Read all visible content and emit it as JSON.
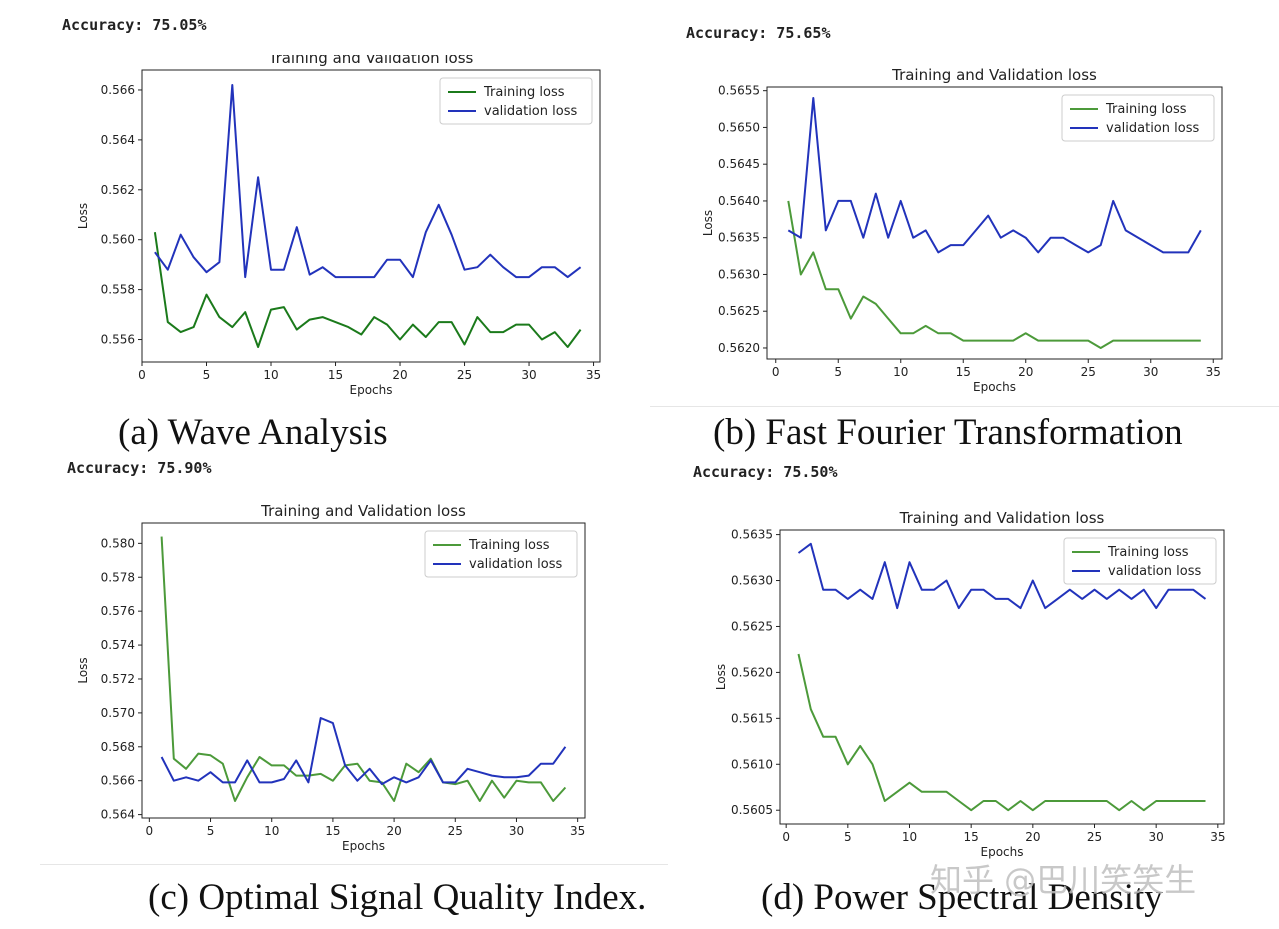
{
  "panels": [
    {
      "accuracy": "Accuracy: 75.05%",
      "caption": "(a) Wave Analysis",
      "chart_data": {
        "type": "line",
        "title": "Training and Validation loss",
        "xlabel": "Epochs",
        "ylabel": "Loss",
        "xlim": [
          0,
          35.5
        ],
        "ylim": [
          0.5551,
          0.5668
        ],
        "xticks": [
          0,
          5,
          10,
          15,
          20,
          25,
          30,
          35
        ],
        "yticks": [
          0.556,
          0.558,
          0.56,
          0.562,
          0.564,
          0.566
        ],
        "ytick_labels": [
          "0.556",
          "0.558",
          "0.560",
          "0.562",
          "0.564",
          "0.566"
        ],
        "x": [
          1,
          2,
          3,
          4,
          5,
          6,
          7,
          8,
          9,
          10,
          11,
          12,
          13,
          14,
          15,
          16,
          17,
          18,
          19,
          20,
          21,
          22,
          23,
          24,
          25,
          26,
          27,
          28,
          29,
          30,
          31,
          32,
          33,
          34
        ],
        "legend_position": "top-right",
        "series": [
          {
            "name": "Training loss",
            "color": "#1b7a1b",
            "values": [
              0.5603,
              0.5567,
              0.5563,
              0.5565,
              0.5578,
              0.5569,
              0.5565,
              0.5571,
              0.5557,
              0.5572,
              0.5573,
              0.5564,
              0.5568,
              0.5569,
              0.5567,
              0.5565,
              0.5562,
              0.5569,
              0.5566,
              0.556,
              0.5566,
              0.5561,
              0.5567,
              0.5567,
              0.5558,
              0.5569,
              0.5563,
              0.5563,
              0.5566,
              0.5566,
              0.556,
              0.5563,
              0.5557,
              0.5564
            ]
          },
          {
            "name": "validation loss",
            "color": "#2233bb",
            "values": [
              0.5595,
              0.5588,
              0.5602,
              0.5593,
              0.5587,
              0.5591,
              0.5662,
              0.5585,
              0.5625,
              0.5588,
              0.5588,
              0.5605,
              0.5586,
              0.5589,
              0.5585,
              0.5585,
              0.5585,
              0.5585,
              0.5592,
              0.5592,
              0.5585,
              0.5603,
              0.5614,
              0.5602,
              0.5588,
              0.5589,
              0.5594,
              0.5589,
              0.5585,
              0.5585,
              0.5589,
              0.5589,
              0.5585,
              0.5589
            ]
          }
        ]
      }
    },
    {
      "accuracy": "Accuracy: 75.65%",
      "caption": "(b) Fast Fourier Transformation",
      "chart_data": {
        "type": "line",
        "title": "Training and Validation loss",
        "xlabel": "Epochs",
        "ylabel": "Loss",
        "xlim": [
          -0.7,
          35.7
        ],
        "ylim": [
          0.56185,
          0.56555
        ],
        "xticks": [
          0,
          5,
          10,
          15,
          20,
          25,
          30,
          35
        ],
        "yticks": [
          0.562,
          0.5625,
          0.563,
          0.5635,
          0.564,
          0.5645,
          0.565,
          0.5655
        ],
        "ytick_labels": [
          "0.5620",
          "0.5625",
          "0.5630",
          "0.5635",
          "0.5640",
          "0.5645",
          "0.5650",
          "0.5655"
        ],
        "x": [
          1,
          2,
          3,
          4,
          5,
          6,
          7,
          8,
          9,
          10,
          11,
          12,
          13,
          14,
          15,
          16,
          17,
          18,
          19,
          20,
          21,
          22,
          23,
          24,
          25,
          26,
          27,
          28,
          29,
          30,
          31,
          32,
          33,
          34
        ],
        "legend_position": "top-right",
        "series": [
          {
            "name": "Training loss",
            "color": "#4c9a3a",
            "values": [
              0.564,
              0.563,
              0.5633,
              0.5628,
              0.5628,
              0.5624,
              0.5627,
              0.5626,
              0.5624,
              0.5622,
              0.5622,
              0.5623,
              0.5622,
              0.5622,
              0.5621,
              0.5621,
              0.5621,
              0.5621,
              0.5621,
              0.5622,
              0.5621,
              0.5621,
              0.5621,
              0.5621,
              0.5621,
              0.562,
              0.5621,
              0.5621,
              0.5621,
              0.5621,
              0.5621,
              0.5621,
              0.5621,
              0.5621
            ]
          },
          {
            "name": "validation loss",
            "color": "#2233bb",
            "values": [
              0.5636,
              0.5635,
              0.5654,
              0.5636,
              0.564,
              0.564,
              0.5635,
              0.5641,
              0.5635,
              0.564,
              0.5635,
              0.5636,
              0.5633,
              0.5634,
              0.5634,
              0.5636,
              0.5638,
              0.5635,
              0.5636,
              0.5635,
              0.5633,
              0.5635,
              0.5635,
              0.5634,
              0.5633,
              0.5634,
              0.564,
              0.5636,
              0.5635,
              0.5634,
              0.5633,
              0.5633,
              0.5633,
              0.5636
            ]
          }
        ]
      }
    },
    {
      "accuracy": "Accuracy: 75.90%",
      "caption": "(c) Optimal Signal Quality Index.",
      "chart_data": {
        "type": "line",
        "title": "Training and Validation loss",
        "xlabel": "Epochs",
        "ylabel": "Loss",
        "xlim": [
          -0.6,
          35.6
        ],
        "ylim": [
          0.5638,
          0.5812
        ],
        "xticks": [
          0,
          5,
          10,
          15,
          20,
          25,
          30,
          35
        ],
        "yticks": [
          0.564,
          0.566,
          0.568,
          0.57,
          0.572,
          0.574,
          0.576,
          0.578,
          0.58
        ],
        "ytick_labels": [
          "0.564",
          "0.566",
          "0.568",
          "0.570",
          "0.572",
          "0.574",
          "0.576",
          "0.578",
          "0.580"
        ],
        "x": [
          1,
          2,
          3,
          4,
          5,
          6,
          7,
          8,
          9,
          10,
          11,
          12,
          13,
          14,
          15,
          16,
          17,
          18,
          19,
          20,
          21,
          22,
          23,
          24,
          25,
          26,
          27,
          28,
          29,
          30,
          31,
          32,
          33,
          34
        ],
        "legend_position": "top-right",
        "series": [
          {
            "name": "Training loss",
            "color": "#4c9a3a",
            "values": [
              0.5804,
              0.5673,
              0.5667,
              0.5676,
              0.5675,
              0.567,
              0.5648,
              0.5662,
              0.5674,
              0.5669,
              0.5669,
              0.5663,
              0.5663,
              0.5664,
              0.566,
              0.5669,
              0.567,
              0.566,
              0.5659,
              0.5648,
              0.567,
              0.5665,
              0.5673,
              0.5659,
              0.5658,
              0.566,
              0.5648,
              0.566,
              0.565,
              0.566,
              0.5659,
              0.5659,
              0.5648,
              0.5656
            ]
          },
          {
            "name": "validation loss",
            "color": "#2233bb",
            "values": [
              0.5674,
              0.566,
              0.5662,
              0.566,
              0.5665,
              0.5659,
              0.5659,
              0.5672,
              0.5659,
              0.5659,
              0.5661,
              0.5672,
              0.5659,
              0.5697,
              0.5694,
              0.5669,
              0.566,
              0.5667,
              0.5658,
              0.5662,
              0.5659,
              0.5662,
              0.5672,
              0.5659,
              0.5659,
              0.5667,
              0.5665,
              0.5663,
              0.5662,
              0.5662,
              0.5663,
              0.567,
              0.567,
              0.568
            ]
          }
        ]
      }
    },
    {
      "accuracy": "Accuracy: 75.50%",
      "caption": "(d) Power Spectral Density",
      "chart_data": {
        "type": "line",
        "title": "Training and Validation loss",
        "xlabel": "Epochs",
        "ylabel": "Loss",
        "xlim": [
          -0.5,
          35.5
        ],
        "ylim": [
          0.56035,
          0.56355
        ],
        "xticks": [
          0,
          5,
          10,
          15,
          20,
          25,
          30,
          35
        ],
        "yticks": [
          0.5605,
          0.561,
          0.5615,
          0.562,
          0.5625,
          0.563,
          0.5635
        ],
        "ytick_labels": [
          "0.5605",
          "0.5610",
          "0.5615",
          "0.5620",
          "0.5625",
          "0.5630",
          "0.5635"
        ],
        "x": [
          1,
          2,
          3,
          4,
          5,
          6,
          7,
          8,
          9,
          10,
          11,
          12,
          13,
          14,
          15,
          16,
          17,
          18,
          19,
          20,
          21,
          22,
          23,
          24,
          25,
          26,
          27,
          28,
          29,
          30,
          31,
          32,
          33,
          34
        ],
        "legend_position": "top-right",
        "series": [
          {
            "name": "Training loss",
            "color": "#4c9a3a",
            "values": [
              0.5622,
              0.5616,
              0.5613,
              0.5613,
              0.561,
              0.5612,
              0.561,
              0.5606,
              0.5607,
              0.5608,
              0.5607,
              0.5607,
              0.5607,
              0.5606,
              0.5605,
              0.5606,
              0.5606,
              0.5605,
              0.5606,
              0.5605,
              0.5606,
              0.5606,
              0.5606,
              0.5606,
              0.5606,
              0.5606,
              0.5605,
              0.5606,
              0.5605,
              0.5606,
              0.5606,
              0.5606,
              0.5606,
              0.5606
            ]
          },
          {
            "name": "validation loss",
            "color": "#2233bb",
            "values": [
              0.5633,
              0.5634,
              0.5629,
              0.5629,
              0.5628,
              0.5629,
              0.5628,
              0.5632,
              0.5627,
              0.5632,
              0.5629,
              0.5629,
              0.563,
              0.5627,
              0.5629,
              0.5629,
              0.5628,
              0.5628,
              0.5627,
              0.563,
              0.5627,
              0.5628,
              0.5629,
              0.5628,
              0.5629,
              0.5628,
              0.5629,
              0.5628,
              0.5629,
              0.5627,
              0.5629,
              0.5629,
              0.5629,
              0.5628
            ]
          }
        ]
      }
    }
  ],
  "watermark": "知乎 @巴川笑笑生"
}
